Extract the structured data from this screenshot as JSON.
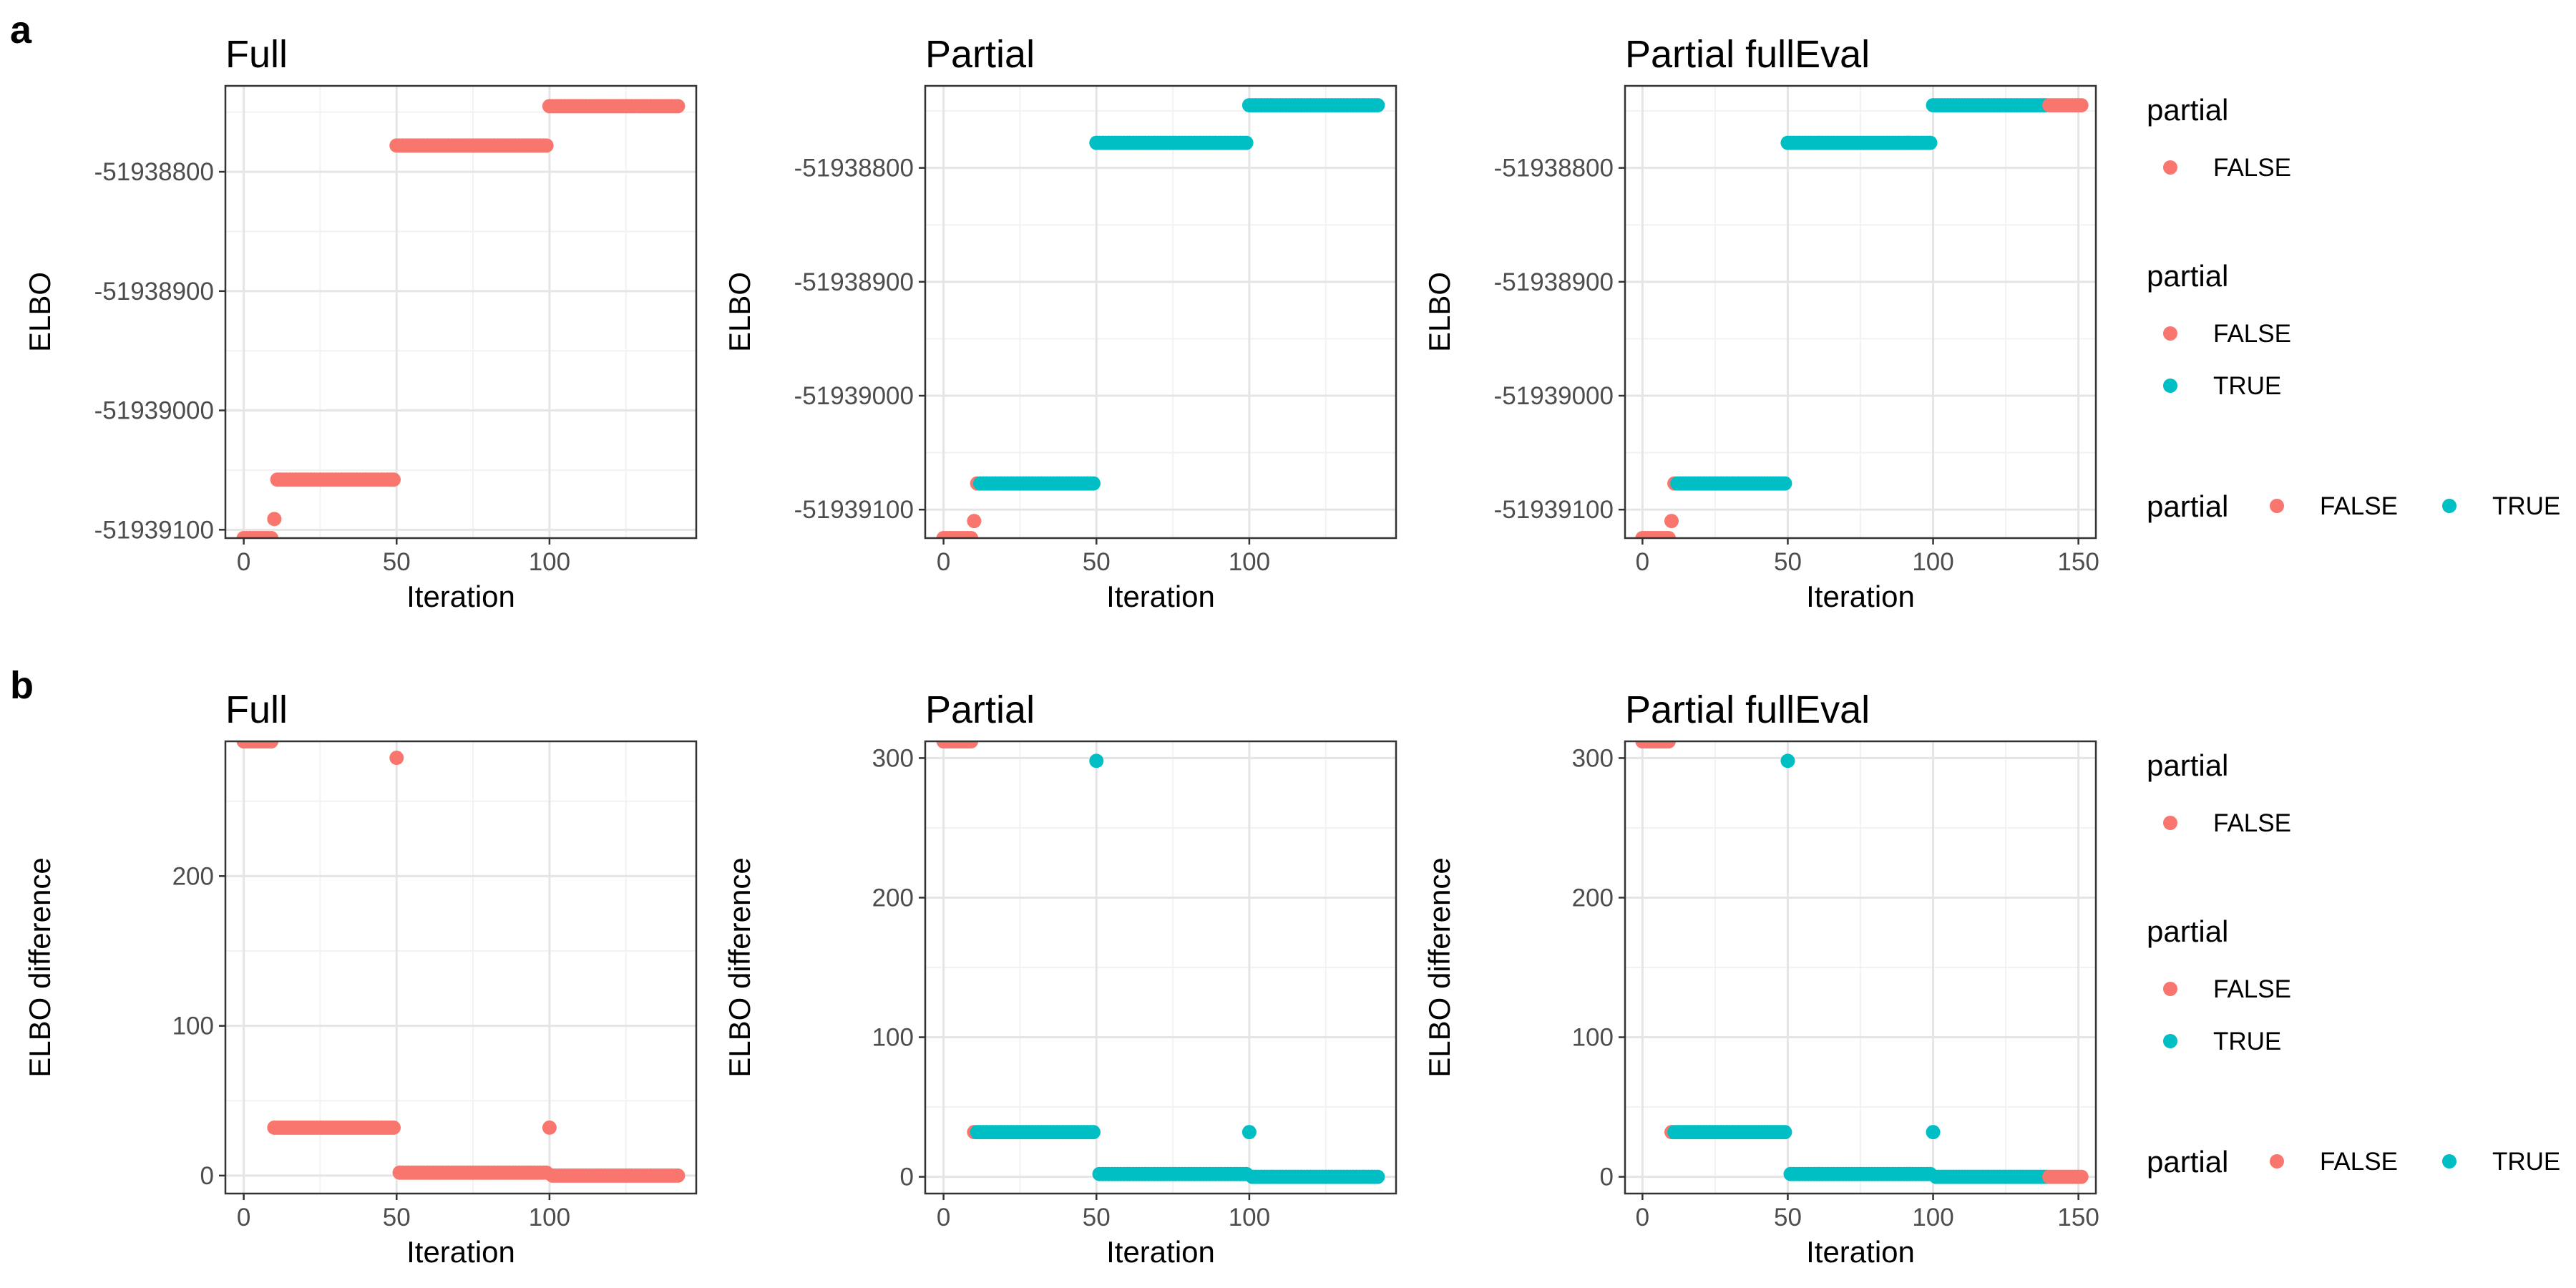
{
  "colors": {
    "FALSE": "#F8766D",
    "TRUE": "#00BFC4",
    "grid_major": "#e5e5e5",
    "grid_minor": "#f2f2f2",
    "frame": "#333333"
  },
  "row_labels": [
    "a",
    "b"
  ],
  "legend_title": "partial",
  "legend_labels": {
    "false": "FALSE",
    "true": "TRUE"
  },
  "chart_data": [
    {
      "type": "scatter",
      "title": "Full",
      "xlabel": "Iteration",
      "ylabel": "ELBO",
      "xlim": [
        -6,
        148
      ],
      "xticks": [
        0,
        50,
        100
      ],
      "ylim": [
        -51939107,
        -51938728
      ],
      "yticks": [
        -51939100,
        -51939000,
        -51938900,
        -51938800
      ],
      "grid": true,
      "segments": [
        {
          "partial": "FALSE",
          "x_from": 0,
          "x_to": 9,
          "y": -51939107
        },
        {
          "partial": "FALSE",
          "x_from": 10,
          "x_to": 10,
          "y": -51939091
        },
        {
          "partial": "FALSE",
          "x_from": 11,
          "x_to": 49,
          "y": -51939058
        },
        {
          "partial": "FALSE",
          "x_from": 50,
          "x_to": 99,
          "y": -51938778
        },
        {
          "partial": "FALSE",
          "x_from": 100,
          "x_to": 142,
          "y": -51938745
        }
      ]
    },
    {
      "type": "scatter",
      "title": "Partial",
      "xlabel": "Iteration",
      "ylabel": "ELBO",
      "xlim": [
        -6,
        148
      ],
      "xticks": [
        0,
        50,
        100
      ],
      "ylim": [
        -51939125,
        -51938728
      ],
      "yticks": [
        -51939100,
        -51939000,
        -51938900,
        -51938800
      ],
      "grid": true,
      "segments": [
        {
          "partial": "FALSE",
          "x_from": 0,
          "x_to": 9,
          "y": -51939125
        },
        {
          "partial": "FALSE",
          "x_from": 10,
          "x_to": 10,
          "y": -51939110
        },
        {
          "partial": "FALSE",
          "x_from": 11,
          "x_to": 11,
          "y": -51939077
        },
        {
          "partial": "TRUE",
          "x_from": 12,
          "x_to": 49,
          "y": -51939077
        },
        {
          "partial": "TRUE",
          "x_from": 50,
          "x_to": 99,
          "y": -51938778
        },
        {
          "partial": "TRUE",
          "x_from": 100,
          "x_to": 142,
          "y": -51938745
        }
      ]
    },
    {
      "type": "scatter",
      "title": "Partial fullEval",
      "xlabel": "Iteration",
      "ylabel": "ELBO",
      "xlim": [
        -6,
        156
      ],
      "xticks": [
        0,
        50,
        100,
        150
      ],
      "ylim": [
        -51939125,
        -51938728
      ],
      "yticks": [
        -51939100,
        -51939000,
        -51938900,
        -51938800
      ],
      "grid": true,
      "segments": [
        {
          "partial": "FALSE",
          "x_from": 0,
          "x_to": 9,
          "y": -51939125
        },
        {
          "partial": "FALSE",
          "x_from": 10,
          "x_to": 10,
          "y": -51939110
        },
        {
          "partial": "FALSE",
          "x_from": 11,
          "x_to": 11,
          "y": -51939077
        },
        {
          "partial": "TRUE",
          "x_from": 12,
          "x_to": 49,
          "y": -51939077
        },
        {
          "partial": "TRUE",
          "x_from": 50,
          "x_to": 99,
          "y": -51938778
        },
        {
          "partial": "TRUE",
          "x_from": 100,
          "x_to": 139,
          "y": -51938745
        },
        {
          "partial": "FALSE",
          "x_from": 140,
          "x_to": 151,
          "y": -51938745
        }
      ]
    },
    {
      "type": "scatter",
      "title": "Full",
      "xlabel": "Iteration",
      "ylabel": "ELBO difference",
      "xlim": [
        -6,
        148
      ],
      "xticks": [
        0,
        50,
        100
      ],
      "ylim": [
        -12,
        290
      ],
      "yticks": [
        0,
        100,
        200
      ],
      "grid": true,
      "segments": [
        {
          "partial": "FALSE",
          "x_from": 0,
          "x_to": 9,
          "y": 290
        },
        {
          "partial": "FALSE",
          "x_from": 10,
          "x_to": 49,
          "y": 32
        },
        {
          "partial": "FALSE",
          "x_from": 50,
          "x_to": 50,
          "y": 279
        },
        {
          "partial": "FALSE",
          "x_from": 51,
          "x_to": 99,
          "y": 2
        },
        {
          "partial": "FALSE",
          "x_from": 100,
          "x_to": 100,
          "y": 32
        },
        {
          "partial": "FALSE",
          "x_from": 101,
          "x_to": 142,
          "y": 0
        }
      ]
    },
    {
      "type": "scatter",
      "title": "Partial",
      "xlabel": "Iteration",
      "ylabel": "ELBO difference",
      "xlim": [
        -6,
        148
      ],
      "xticks": [
        0,
        50,
        100
      ],
      "ylim": [
        -12,
        312
      ],
      "yticks": [
        0,
        100,
        200,
        300
      ],
      "grid": true,
      "segments": [
        {
          "partial": "FALSE",
          "x_from": 0,
          "x_to": 9,
          "y": 312
        },
        {
          "partial": "FALSE",
          "x_from": 10,
          "x_to": 10,
          "y": 32
        },
        {
          "partial": "TRUE",
          "x_from": 11,
          "x_to": 49,
          "y": 32
        },
        {
          "partial": "TRUE",
          "x_from": 50,
          "x_to": 50,
          "y": 298
        },
        {
          "partial": "TRUE",
          "x_from": 51,
          "x_to": 99,
          "y": 2
        },
        {
          "partial": "TRUE",
          "x_from": 100,
          "x_to": 100,
          "y": 32
        },
        {
          "partial": "TRUE",
          "x_from": 101,
          "x_to": 142,
          "y": 0
        }
      ]
    },
    {
      "type": "scatter",
      "title": "Partial fullEval",
      "xlabel": "Iteration",
      "ylabel": "ELBO difference",
      "xlim": [
        -6,
        156
      ],
      "xticks": [
        0,
        50,
        100,
        150
      ],
      "ylim": [
        -12,
        312
      ],
      "yticks": [
        0,
        100,
        200,
        300
      ],
      "grid": true,
      "segments": [
        {
          "partial": "FALSE",
          "x_from": 0,
          "x_to": 9,
          "y": 312
        },
        {
          "partial": "FALSE",
          "x_from": 10,
          "x_to": 10,
          "y": 32
        },
        {
          "partial": "TRUE",
          "x_from": 11,
          "x_to": 49,
          "y": 32
        },
        {
          "partial": "TRUE",
          "x_from": 50,
          "x_to": 50,
          "y": 298
        },
        {
          "partial": "TRUE",
          "x_from": 51,
          "x_to": 99,
          "y": 2
        },
        {
          "partial": "TRUE",
          "x_from": 100,
          "x_to": 100,
          "y": 32
        },
        {
          "partial": "TRUE",
          "x_from": 101,
          "x_to": 139,
          "y": 0
        },
        {
          "partial": "FALSE",
          "x_from": 140,
          "x_to": 151,
          "y": 0
        }
      ]
    }
  ],
  "legends": [
    {
      "layout": "vertical",
      "title": "partial",
      "keys": [
        "FALSE"
      ]
    },
    {
      "layout": "vertical",
      "title": "partial",
      "keys": [
        "FALSE",
        "TRUE"
      ]
    },
    {
      "layout": "horizontal",
      "title": "partial",
      "keys": [
        "FALSE",
        "TRUE"
      ]
    }
  ]
}
